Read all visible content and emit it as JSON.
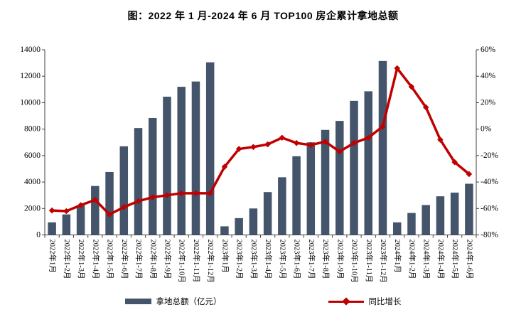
{
  "title": "图：2022 年 1 月-2024 年 6 月 TOP100 房企累计拿地总额",
  "legend": {
    "bar_label": "拿地总额（亿元）",
    "line_label": "同比增长"
  },
  "colors": {
    "bar": "#44546A",
    "line": "#C00000",
    "axis": "#404040",
    "text": "#000000"
  },
  "chart_data": {
    "type": "bar",
    "subtype": "bar+line dual-axis combo",
    "title": "图：2022 年 1 月-2024 年 6 月 TOP100 房企累计拿地总额",
    "categories": [
      "2022年1月",
      "2022年1-2月",
      "2022年1-3月",
      "2022年1-4月",
      "2022年1-5月",
      "2022年1-6月",
      "2022年1-7月",
      "2022年1-8月",
      "2022年1-9月",
      "2022年1-10月",
      "2022年1-11月",
      "2022年1-12月",
      "2023年1月",
      "2023年1-2月",
      "2023年1-3月",
      "2023年1-4月",
      "2023年1-5月",
      "2023年1-6月",
      "2023年1-7月",
      "2023年1-8月",
      "2023年1-9月",
      "2023年1-10月",
      "2023年1-11月",
      "2023年1-12月",
      "2024年1月",
      "2024年1-2月",
      "2024年1-3月",
      "2024年1-4月",
      "2024年1-5月",
      "2024年1-6月"
    ],
    "series": [
      {
        "name": "拿地总额（亿元）",
        "type": "bar",
        "axis": "left",
        "unit": "亿元",
        "values": [
          950,
          1550,
          2240,
          3700,
          4760,
          6700,
          8080,
          8840,
          10450,
          11200,
          11600,
          13050,
          650,
          1270,
          2000,
          3240,
          4360,
          5950,
          7000,
          7940,
          8620,
          10140,
          10860,
          13150,
          950,
          1660,
          2260,
          2920,
          3200,
          3870
        ]
      },
      {
        "name": "同比增长",
        "type": "line",
        "axis": "right",
        "unit": "%",
        "values": [
          -61.5,
          -62,
          -57.5,
          -53.5,
          -64.5,
          -59,
          -54.5,
          -51.5,
          -50,
          -48.5,
          -48.5,
          -48.5,
          -28.5,
          -15,
          -13.5,
          -11.5,
          -6.5,
          -10.5,
          -12,
          -9.5,
          -17,
          -10.5,
          -6.5,
          2,
          46,
          32,
          16.5,
          -8,
          -25,
          -34
        ]
      }
    ],
    "left_axis": {
      "min": 0,
      "max": 14000,
      "step": 2000,
      "tick_labels": [
        "0",
        "2000",
        "4000",
        "6000",
        "8000",
        "10000",
        "12000",
        "14000"
      ]
    },
    "right_axis": {
      "min": -80,
      "max": 60,
      "step": 20,
      "tick_labels": [
        "-80%",
        "-60%",
        "-40%",
        "-20%",
        "0%",
        "20%",
        "40%",
        "60%"
      ]
    },
    "grid": false,
    "legend_position": "bottom",
    "x_label_rotation_deg": 90
  }
}
